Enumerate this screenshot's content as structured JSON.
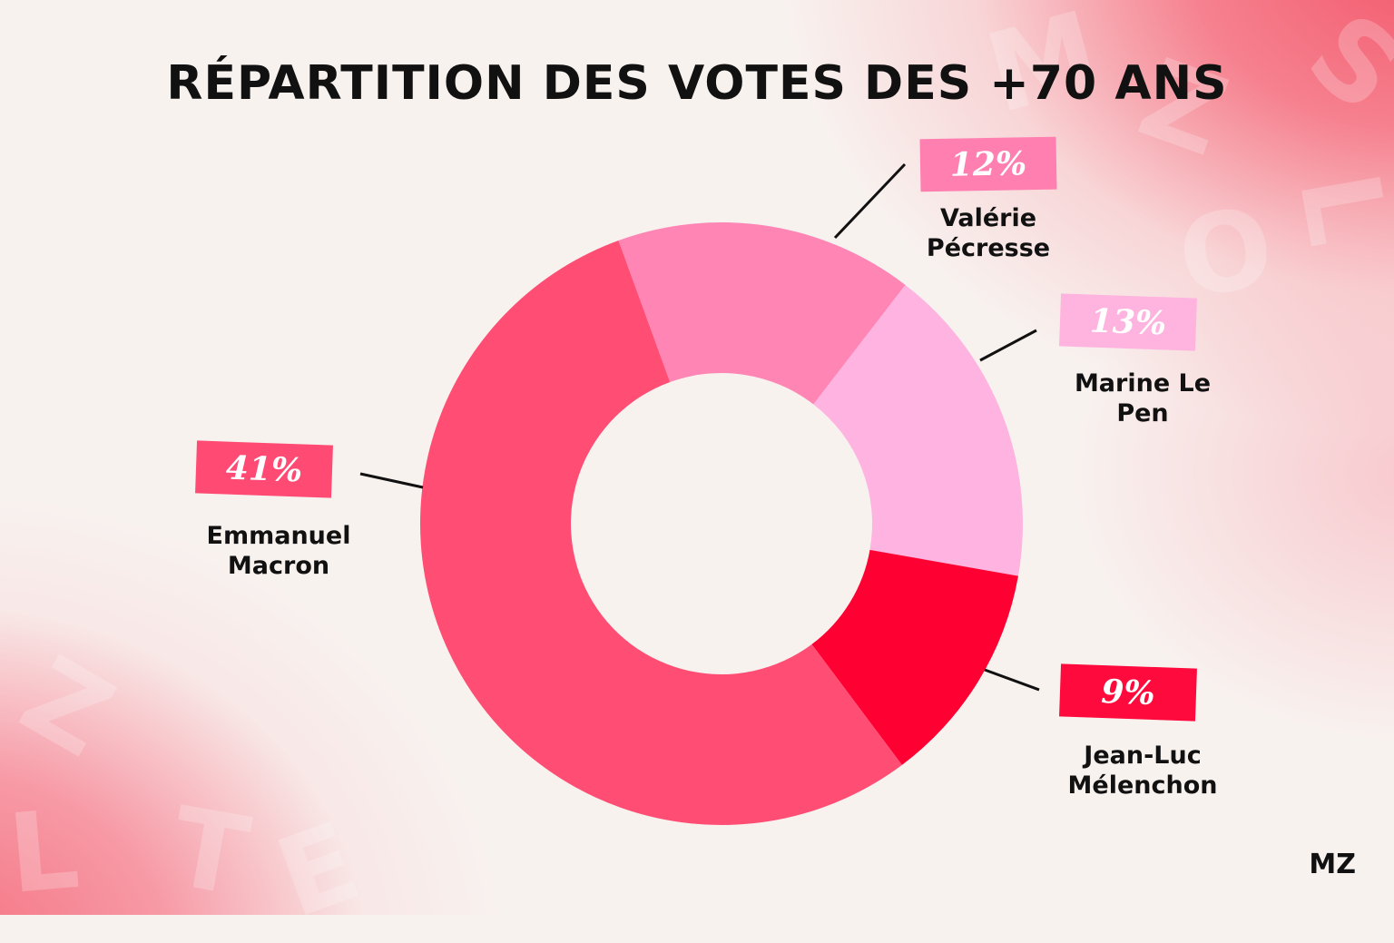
{
  "title": "RÉPARTITION DES VOTES DES +70 ANS",
  "logo": "MZ",
  "chart_data": {
    "type": "pie",
    "title": "RÉPARTITION DES VOTES DES +70 ANS",
    "slices": [
      {
        "name": "Valérie Pécresse",
        "value": 12,
        "label": "12%",
        "color": "#ff85b5",
        "badge_color": "#ff80b0"
      },
      {
        "name": "Marine Le Pen",
        "value": 13,
        "label": "13%",
        "color": "#ffb3e0",
        "badge_color": "#ffb3df"
      },
      {
        "name": "Jean-Luc Mélenchon",
        "value": 9,
        "label": "9%",
        "color": "#ff0033",
        "badge_color": "#ff0a3c"
      },
      {
        "name": "Emmanuel Macron",
        "value": 41,
        "label": "41%",
        "color": "#ff4d74",
        "badge_color": "#ff4b74"
      }
    ],
    "label_lines": {
      "pecresse": "Valérie",
      "pecresse2": "Pécresse",
      "lepen": "Marine Le",
      "lepen2": "Pen",
      "melenchon": "Jean-Luc",
      "melenchon2": "Mélenchon",
      "macron": "Emmanuel",
      "macron2": "Macron"
    }
  }
}
